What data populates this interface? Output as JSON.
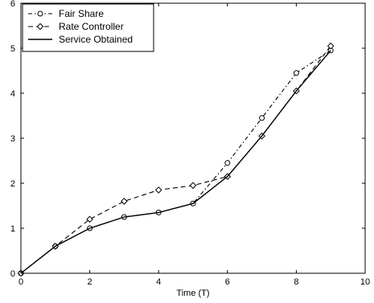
{
  "chart_data": {
    "type": "line",
    "title": "",
    "xlabel": "Time (T)",
    "ylabel": "",
    "xlim": [
      0,
      10
    ],
    "ylim": [
      0,
      6
    ],
    "xticks": [
      0,
      2,
      4,
      6,
      8,
      10
    ],
    "yticks": [
      0,
      1,
      2,
      3,
      4,
      5,
      6
    ],
    "grid": false,
    "legend_position": "top-left",
    "series": [
      {
        "name": "Fair Share",
        "line_style": "dash-dot",
        "marker": "circle",
        "color": "#000000",
        "x": [
          0,
          1,
          2,
          3,
          4,
          5,
          6,
          7,
          8,
          9
        ],
        "y": [
          0,
          0.6,
          1.0,
          1.25,
          1.35,
          1.55,
          2.45,
          3.45,
          4.45,
          4.95
        ]
      },
      {
        "name": "Rate Controller",
        "line_style": "dashed",
        "marker": "diamond",
        "color": "#000000",
        "x": [
          0,
          1,
          2,
          3,
          4,
          5,
          6,
          7,
          8,
          9
        ],
        "y": [
          0,
          0.6,
          1.2,
          1.6,
          1.85,
          1.95,
          2.15,
          3.05,
          4.05,
          5.05
        ]
      },
      {
        "name": "Service Obtained",
        "line_style": "solid",
        "marker": "none",
        "color": "#000000",
        "x": [
          0,
          1,
          2,
          3,
          4,
          5,
          6,
          7,
          8,
          9
        ],
        "y": [
          0,
          0.6,
          1.0,
          1.25,
          1.35,
          1.55,
          2.15,
          3.05,
          4.05,
          4.95
        ]
      }
    ]
  }
}
